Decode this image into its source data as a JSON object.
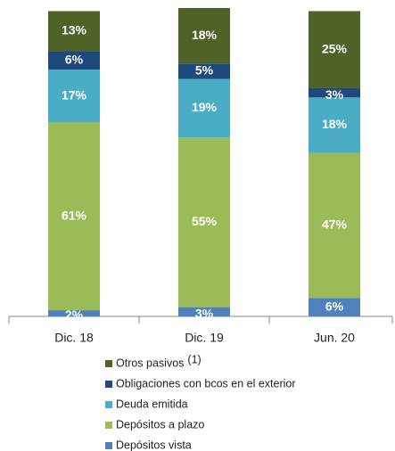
{
  "chart_data": {
    "type": "stacked_bar",
    "categories": [
      "Dic. 18",
      "Dic. 19",
      "Jun. 20"
    ],
    "ylim": [
      0,
      100
    ],
    "series": [
      {
        "name": "Depósitos vista",
        "color": "#4f81bd",
        "values": [
          2,
          3,
          6
        ],
        "value_labels": [
          "2%",
          "3%",
          "6%"
        ]
      },
      {
        "name": "Depósitos a plazo",
        "color": "#9bbb59",
        "values": [
          61,
          55,
          47
        ],
        "value_labels": [
          "61%",
          "55%",
          "47%"
        ]
      },
      {
        "name": "Deuda emitida",
        "color": "#4bacc6",
        "values": [
          17,
          19,
          18
        ],
        "value_labels": [
          "17%",
          "19%",
          "18%"
        ]
      },
      {
        "name": "Obligaciones con bcos en el exterior",
        "color": "#1f497d",
        "values": [
          6,
          5,
          3
        ],
        "value_labels": [
          "6%",
          "5%",
          "3%"
        ]
      },
      {
        "name": "Otros pasivos",
        "note": "(1)",
        "color": "#4f6228",
        "values": [
          13,
          18,
          25
        ],
        "value_labels": [
          "13%",
          "18%",
          "25%"
        ]
      }
    ]
  }
}
